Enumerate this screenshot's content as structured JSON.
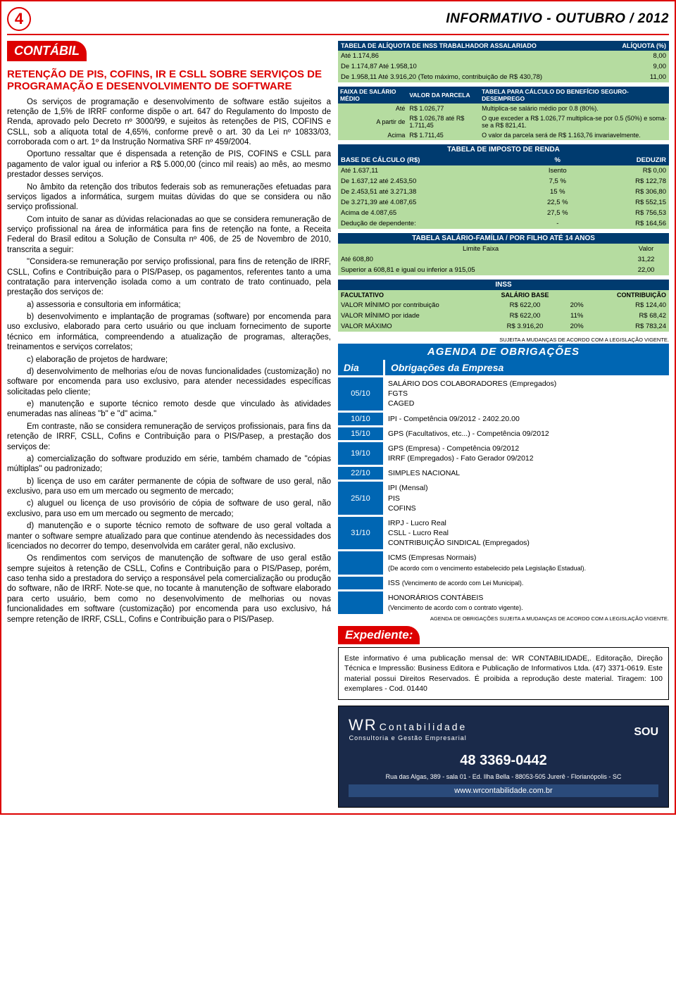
{
  "header": {
    "page_num": "4",
    "title": "INFORMATIVO - OUTUBRO / 2012"
  },
  "section": {
    "label": "CONTÁBIL"
  },
  "article": {
    "title": "RETENÇÃO DE PIS, COFINS, IR E CSLL SOBRE SERVIÇOS DE PROGRAMAÇÃO E DESENVOLVIMENTO DE SOFTWARE",
    "p": [
      "Os serviços de programação e desenvolvimento de software estão sujeitos a retenção de 1,5% de IRRF conforme dispõe o art. 647 do Regulamento do Imposto de Renda, aprovado pelo Decreto nº 3000/99, e sujeitos às retenções de PIS, COFINS e CSLL, sob a alíquota total de 4,65%, conforme prevê o art. 30 da Lei nº 10833/03, corroborada com o art. 1º da Instrução Normativa SRF nº 459/2004.",
      "Oportuno ressaltar que é dispensada a retenção de PIS, COFINS e CSLL para pagamento de valor igual ou inferior a R$ 5.000,00 (cinco mil reais) ao mês, ao mesmo prestador desses serviços.",
      "No âmbito da retenção dos tributos federais sob as remunerações efetuadas para serviços ligados a informática, surgem muitas dúvidas do que se considera ou não serviço profissional.",
      "Com intuito de sanar as dúvidas relacionadas ao que se considera remuneração de serviço profissional na área de informática para fins de retenção na fonte, a Receita Federal do Brasil editou a Solução de Consulta nº 406, de 25 de Novembro de 2010, transcrita a seguir:",
      "\"Considera-se remuneração por serviço profissional, para fins de retenção de IRRF, CSLL, Cofins e Contribuição para o PIS/Pasep, os pagamentos, referentes tanto a uma contratação para intervenção isolada como a um contrato de trato continuado, pela prestação dos serviços de:",
      "a) assessoria e consultoria em informática;",
      "b) desenvolvimento e implantação de programas (software) por encomenda para uso exclusivo, elaborado para certo usuário ou que incluam fornecimento de suporte técnico em informática, compreendendo a atualização de programas, alterações, treinamentos e serviços correlatos;",
      "c) elaboração de projetos de hardware;",
      "d) desenvolvimento de melhorias e/ou de novas funcionalidades (customização) no software por encomenda para uso exclusivo, para atender necessidades específicas solicitadas pelo cliente;",
      "e) manutenção e suporte técnico remoto desde que vinculado às atividades enumeradas nas alíneas \"b\" e \"d\" acima.\"",
      "Em contraste, não se considera remuneração de serviços profissionais, para fins da retenção de IRRF, CSLL, Cofins e Contribuição para o PIS/Pasep, a prestação dos serviços de:",
      "a) comercialização do software produzido em série, também chamado de \"cópias múltiplas\" ou padronizado;",
      "b) licença de uso em caráter permanente de cópia de software de uso geral, não exclusivo, para uso em um mercado ou segmento de mercado;",
      "c) aluguel ou licença de uso provisório de cópia de software de uso geral, não exclusivo, para uso em um mercado ou segmento de mercado;",
      "d) manutenção e o suporte técnico remoto de software de uso geral voltada a manter o software sempre atualizado para que continue atendendo às necessidades dos licenciados no decorrer do tempo, desenvolvida em caráter geral, não exclusivo.",
      "Os rendimentos com serviços de manutenção de software de uso geral estão sempre sujeitos à retenção de CSLL, Cofins e Contribuição para o PIS/Pasep, porém, caso tenha sido a prestadora do serviço a responsável pela comercialização ou produção do software, não de IRRF. Note-se que, no tocante à manutenção de software elaborado para certo usuário, bem como no desenvolvimento de melhorias ou novas funcionalidades em software (customização) por encomenda para uso exclusivo, há sempre retenção de IRRF, CSLL, Cofins e Contribuição para o PIS/Pasep."
    ]
  },
  "inss": {
    "h1": "TABELA DE ALÍQUOTA DE INSS TRABALHADOR ASSALARIADO",
    "h2": "ALÍQUOTA (%)",
    "rows": [
      [
        "Até 1.174,86",
        "8,00"
      ],
      [
        "De 1.174,87 Até 1.958,10",
        "9,00"
      ],
      [
        "De 1.958,11 Até 3.916,20 (Teto máximo, contribuição de R$ 430,78)",
        "11,00"
      ]
    ]
  },
  "seg": {
    "h": [
      "FAIXA DE SALÁRIO MÉDIO",
      "VALOR DA PARCELA",
      "TABELA PARA CÁLCULO DO BENEFÍCIO SEGURO-DESEMPREGO"
    ],
    "rows": [
      [
        "Até",
        "R$ 1.026,77",
        "Multiplica-se salário médio por 0.8 (80%)."
      ],
      [
        "A partir de",
        "R$ 1.026,78 até R$ 1.711,45",
        "O que exceder a R$ 1.026,77 multiplica-se por 0.5 (50%) e soma-se a R$ 821,41."
      ],
      [
        "Acima",
        "R$ 1.711,45",
        "O valor da parcela será de R$ 1.163,76 invariavelmente."
      ]
    ]
  },
  "renda": {
    "title": "TABELA DE IMPOSTO DE RENDA",
    "h": [
      "BASE DE CÁLCULO (R$)",
      "%",
      "DEDUZIR"
    ],
    "rows": [
      [
        "Até 1.637,11",
        "Isento",
        "R$      0,00"
      ],
      [
        "De 1.637,12 até 2.453,50",
        "7,5 %",
        "R$  122,78"
      ],
      [
        "De 2.453,51 até 3.271,38",
        "15 %",
        "R$  306,80"
      ],
      [
        "De 3.271,39 até 4.087,65",
        "22,5 %",
        "R$  552,15"
      ],
      [
        "Acima de 4.087,65",
        "27,5 %",
        "R$  756,53"
      ],
      [
        "Dedução de dependente:",
        "-",
        "R$  164,56"
      ]
    ]
  },
  "fam": {
    "title": "TABELA  SALÁRIO-FAMÍLIA / POR FILHO ATÉ 14 ANOS",
    "h": [
      "Limite Faixa",
      "Valor"
    ],
    "rows": [
      [
        "Até 608,80",
        "31,22"
      ],
      [
        "Superior a 608,81 e igual ou inferior a 915,05",
        "22,00"
      ]
    ]
  },
  "inss2": {
    "title": "INSS",
    "h": [
      "FACULTATIVO",
      "SALÁRIO BASE",
      "",
      "CONTRIBUIÇÃO"
    ],
    "rows": [
      [
        "VALOR MÍNIMO por contribuição",
        "R$   622,00",
        "20%",
        "R$   124,40"
      ],
      [
        "VALOR MÍNIMO por idade",
        "R$   622,00",
        "11%",
        "R$     68,42"
      ],
      [
        "VALOR MÁXIMO",
        "R$ 3.916,20",
        "20%",
        "R$   783,24"
      ]
    ],
    "note": "SUJEITA A MUDANÇAS DE ACORDO COM A LEGISLAÇÃO VIGENTE."
  },
  "agenda": {
    "title": "AGENDA DE OBRIGAÇÕES",
    "col1": "Dia",
    "col2": "Obrigações da Empresa",
    "rows": [
      {
        "d": "05/10",
        "o": "SALÁRIO DOS COLABORADORES (Empregados)<br>FGTS<br>CAGED"
      },
      {
        "d": "10/10",
        "o": "IPI - Competência 09/2012 - 2402.20.00"
      },
      {
        "d": "15/10",
        "o": "GPS (Facultativos, etc...) - Competência 09/2012"
      },
      {
        "d": "19/10",
        "o": "GPS (Empresa) - Competência 09/2012<br>IRRF (Empregados) - Fato Gerador 09/2012"
      },
      {
        "d": "22/10",
        "o": "SIMPLES NACIONAL"
      },
      {
        "d": "25/10",
        "o": "IPI (Mensal)<br>PIS<br>COFINS"
      },
      {
        "d": "31/10",
        "o": "IRPJ - Lucro Real<br>CSLL - Lucro Real<br>CONTRIBUIÇÃO SINDICAL (Empregados)"
      },
      {
        "d": "",
        "o": "ICMS (Empresas Normais)<br><span style='font-size:9px'>(De acordo com o vencimento estabelecido pela Legislação Estadual).</span>"
      },
      {
        "d": "",
        "o": "ISS <span style='font-size:9px'>(Vencimento de acordo com Lei Municipal).</span>"
      },
      {
        "d": "",
        "o": "HONORÁRIOS CONTÁBEIS<br><span style='font-size:9px'>(Vencimento de acordo com o contrato vigente).</span>"
      }
    ],
    "foot": "AGENDA DE OBRIGAÇÕES SUJEITA A MUDANÇAS DE ACORDO COM A LEGISLAÇÃO VIGENTE."
  },
  "exp": {
    "title": "Expediente:",
    "text": "Este informativo é uma publicação mensal de: WR CONTABILIDADE,. Editoração, Direção Técnica e Impressão: Business Editora e Publicação de Informativos Ltda. (47) 3371-0619. Este material possui Direitos Reservados. É proibida a reprodução deste material. Tiragem: 100 exemplares - Cod. 01440"
  },
  "ad": {
    "logo": "WR",
    "name": "Contabilidade",
    "sub": "Consultoria e Gestão Empresarial",
    "partner": "SOU",
    "tel": "48 3369-0442",
    "addr": "Rua das Algas, 389 - sala 01 - Ed. Ilha Bella - 88053-505    Jurerê - Florianópolis - SC",
    "site": "www.wrcontabilidade.com.br"
  }
}
